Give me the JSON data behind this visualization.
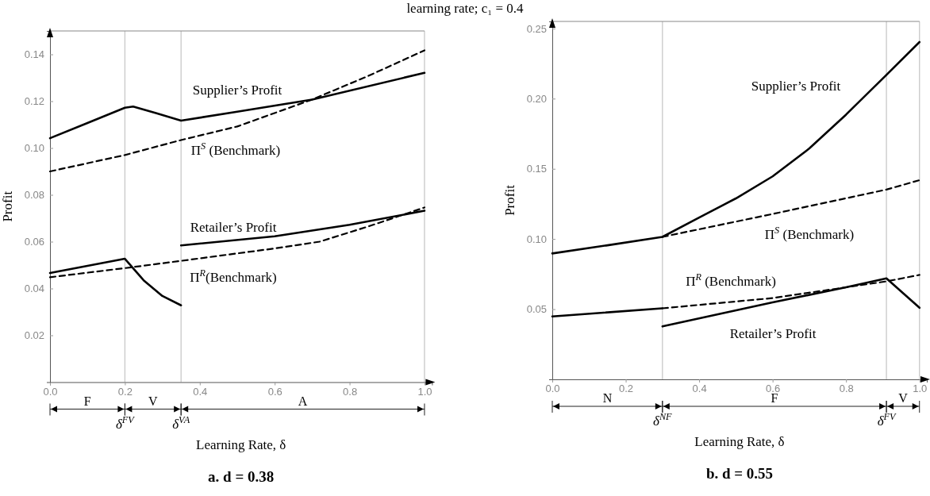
{
  "chart_data": [
    {
      "type": "line",
      "title": "learning rate; c₁ = 0.4",
      "xlabel": "Learning Rate, δ",
      "ylabel": "Profit",
      "xlim": [
        0,
        1.02
      ],
      "ylim": [
        0,
        0.15
      ],
      "xticks": [
        {
          "value": 0,
          "label": "0.0"
        },
        {
          "value": 0.2,
          "label": "0.2"
        },
        {
          "value": 0.4,
          "label": "0.4"
        },
        {
          "value": 0.6,
          "label": "0.6"
        },
        {
          "value": 0.8,
          "label": "0.8"
        },
        {
          "value": 1,
          "label": "1.0"
        }
      ],
      "yticks": [
        {
          "value": 0.02,
          "label": "0.02"
        },
        {
          "value": 0.04,
          "label": "0.04"
        },
        {
          "value": 0.06,
          "label": "0.06"
        },
        {
          "value": 0.08,
          "label": "0.08"
        },
        {
          "value": 0.1,
          "label": "0.10"
        },
        {
          "value": 0.12,
          "label": "0.12"
        },
        {
          "value": 0.14,
          "label": "0.14"
        }
      ],
      "series": [
        {
          "color": "#000000",
          "line_style": "solid",
          "x": [
            0,
            0.1,
            0.2,
            0.222,
            0.283,
            0.35,
            0.5,
            0.7,
            1.0
          ],
          "values": [
            0.1042,
            0.1107,
            0.1172,
            0.1177,
            0.1149,
            0.1117,
            0.1155,
            0.1207,
            0.1321
          ]
        },
        {
          "color": "#000000",
          "line_style": "dashed",
          "x": [
            0,
            0.2,
            0.35,
            0.5,
            0.7,
            0.85,
            1.0
          ],
          "values": [
            0.09,
            0.097,
            0.1034,
            0.1092,
            0.1207,
            0.1308,
            0.1417
          ]
        },
        {
          "color": "#000000",
          "line_style": "solid",
          "x": [
            0,
            0.2,
            0.25,
            0.3,
            0.35
          ],
          "values": [
            0.0466,
            0.0527,
            0.0435,
            0.0368,
            0.0328
          ]
        },
        {
          "color": "#000000",
          "line_style": "solid",
          "x": [
            0.35,
            0.6,
            0.8,
            1.0
          ],
          "values": [
            0.0584,
            0.0623,
            0.0672,
            0.0732
          ]
        },
        {
          "color": "#000000",
          "line_style": "dashed",
          "x": [
            0,
            0.2,
            0.35,
            0.6,
            0.72,
            0.85,
            1.0
          ],
          "values": [
            0.0448,
            0.0487,
            0.0518,
            0.0571,
            0.06,
            0.0665,
            0.0746
          ]
        }
      ],
      "ref_lines": [
        {
          "axis": "x",
          "value": 0.2,
          "label": "δ$^{FV}$"
        },
        {
          "axis": "x",
          "value": 0.35,
          "label": "δ$^{VA}$"
        },
        {
          "axis": "x",
          "value": 1.0,
          "label": null
        }
      ],
      "annotations": [
        "Supplier’s Profit",
        "Π$^{S}$ (Benchmark)",
        "Retailer’s Profit",
        "Π$^{R}$(Benchmark)",
        "F",
        "V",
        "A",
        "a. d = 0.38"
      ]
    },
    {
      "type": "line",
      "xlabel": "Learning Rate, δ",
      "ylabel": "Profit",
      "xlim": [
        0,
        1.02
      ],
      "ylim": [
        0,
        0.255
      ],
      "xticks": [
        {
          "value": 0,
          "label": "0.0"
        },
        {
          "value": 0.2,
          "label": "0.2"
        },
        {
          "value": 0.4,
          "label": "0.4"
        },
        {
          "value": 0.6,
          "label": "0.6"
        },
        {
          "value": 0.8,
          "label": "0.8"
        },
        {
          "value": 1,
          "label": "1.0"
        }
      ],
      "yticks": [
        {
          "value": 0.05,
          "label": "0.05"
        },
        {
          "value": 0.1,
          "label": "0.10"
        },
        {
          "value": 0.15,
          "label": "0.15"
        },
        {
          "value": 0.2,
          "label": "0.20"
        },
        {
          "value": 0.25,
          "label": "0.25"
        }
      ],
      "series": [
        {
          "color": "#000000",
          "line_style": "solid",
          "x": [
            0,
            0.15,
            0.3,
            0.4,
            0.5,
            0.6,
            0.7,
            0.8,
            0.91,
            1.0
          ],
          "values": [
            0.0897,
            0.0955,
            0.1015,
            0.1153,
            0.1289,
            0.1446,
            0.1645,
            0.1886,
            0.2169,
            0.2403
          ]
        },
        {
          "color": "#000000",
          "line_style": "dashed",
          "x": [
            0.3,
            0.6,
            0.91,
            1.0
          ],
          "values": [
            0.1015,
            0.1178,
            0.1352,
            0.1419
          ]
        },
        {
          "color": "#000000",
          "line_style": "solid",
          "x": [
            0,
            0.3
          ],
          "values": [
            0.0448,
            0.0506
          ]
        },
        {
          "color": "#000000",
          "line_style": "solid",
          "x": [
            0.3,
            0.6,
            0.8,
            0.91,
            1.0
          ],
          "values": [
            0.0377,
            0.0548,
            0.0656,
            0.0719,
            0.051
          ]
        },
        {
          "color": "#000000",
          "line_style": "dashed",
          "x": [
            0.3,
            0.6,
            0.91,
            1.0
          ],
          "values": [
            0.0506,
            0.0579,
            0.0698,
            0.0744
          ]
        }
      ],
      "ref_lines": [
        {
          "axis": "x",
          "value": 0.3,
          "label": "δ$^{NF}$"
        },
        {
          "axis": "x",
          "value": 0.91,
          "label": "δ$^{FV}$"
        },
        {
          "axis": "x",
          "value": 1.0,
          "label": null
        }
      ],
      "annotations": [
        "Supplier’s Profit",
        "Π$^{S}$ (Benchmark)",
        "Π$^{R}$ (Benchmark)",
        "Retailer’s Profit",
        "N",
        "F",
        "V",
        "b. d = 0.55"
      ]
    }
  ]
}
